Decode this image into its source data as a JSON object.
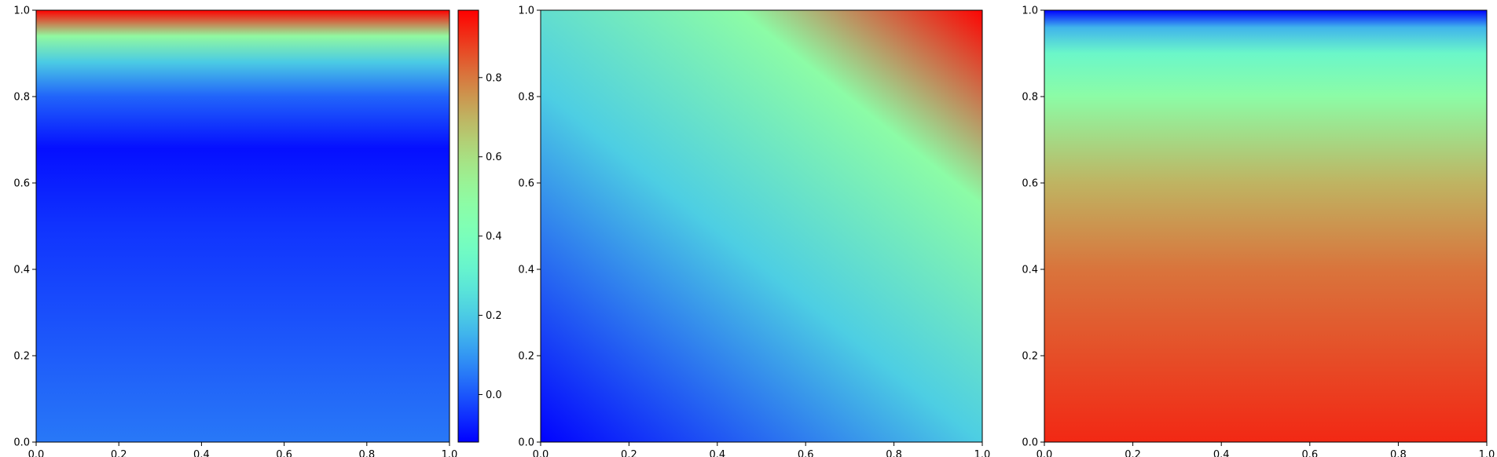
{
  "chart_data": [
    {
      "type": "heatmap",
      "colormap": "rainbow",
      "xlim": [
        0.0,
        1.0
      ],
      "ylim": [
        0.0,
        1.0
      ],
      "x_ticks": [
        "0.0",
        "0.2",
        "0.4",
        "0.6",
        "0.8",
        "1.0"
      ],
      "y_ticks": [
        "0.0",
        "0.2",
        "0.4",
        "0.6",
        "0.8",
        "1.0"
      ],
      "color_ramp": [
        {
          "y": 0.0,
          "value": 0.05
        },
        {
          "y": 0.5,
          "value": -0.05
        },
        {
          "y": 0.68,
          "value": -0.1
        },
        {
          "y": 0.8,
          "value": 0.02
        },
        {
          "y": 0.88,
          "value": 0.2
        },
        {
          "y": 0.94,
          "value": 0.5
        },
        {
          "y": 1.0,
          "value": 0.97
        }
      ],
      "colorbar": {
        "range": [
          -0.12,
          0.97
        ],
        "ticks": [
          "0.0",
          "0.2",
          "0.4",
          "0.6",
          "0.8"
        ],
        "tick_values": [
          0.0,
          0.2,
          0.4,
          0.6,
          0.8
        ]
      }
    },
    {
      "type": "heatmap",
      "colormap": "rainbow",
      "xlim": [
        0.0,
        1.0
      ],
      "ylim": [
        0.0,
        1.0
      ],
      "x_ticks": [
        "0.0",
        "0.2",
        "0.4",
        "0.6",
        "0.8",
        "1.0"
      ],
      "y_ticks": [
        "0.0",
        "0.2",
        "0.4",
        "0.6",
        "0.8",
        "1.0"
      ],
      "color_ramp": [
        {
          "t": 0.0,
          "value": 0.0
        },
        {
          "t": 0.45,
          "value": 0.3
        },
        {
          "t": 0.75,
          "value": 0.55
        },
        {
          "t": 1.0,
          "value": 1.0
        }
      ]
    },
    {
      "type": "heatmap",
      "colormap": "rainbow",
      "xlim": [
        0.0,
        1.0
      ],
      "ylim": [
        0.0,
        1.0
      ],
      "x_ticks": [
        "0.0",
        "0.2",
        "0.4",
        "0.6",
        "0.8",
        "1.0"
      ],
      "y_ticks": [
        "0.0",
        "0.2",
        "0.4",
        "0.6",
        "0.8",
        "1.0"
      ],
      "color_ramp": [
        {
          "y": 0.0,
          "value": 0.95
        },
        {
          "y": 0.4,
          "value": 0.85
        },
        {
          "y": 0.6,
          "value": 0.75
        },
        {
          "y": 0.8,
          "value": 0.55
        },
        {
          "y": 0.9,
          "value": 0.42
        },
        {
          "y": 0.96,
          "value": 0.25
        },
        {
          "y": 1.0,
          "value": 0.0
        }
      ]
    }
  ]
}
